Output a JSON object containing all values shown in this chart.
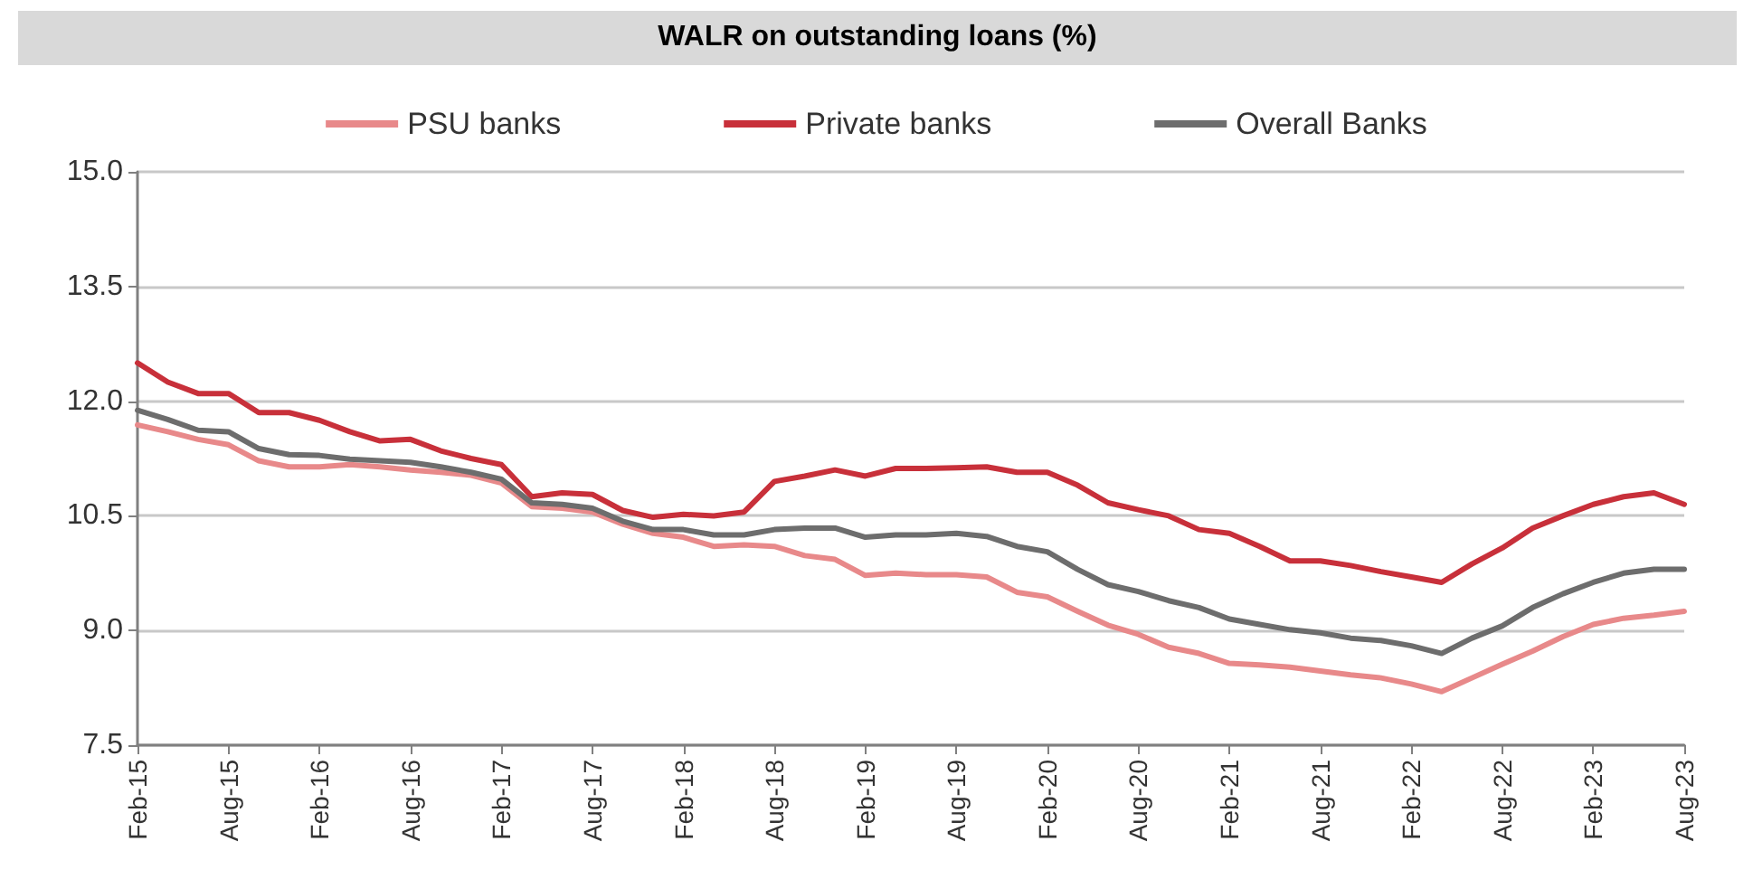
{
  "chart_data": {
    "type": "line",
    "title": "WALR on outstanding loans (%)",
    "categories": [
      "Feb-15",
      null,
      null,
      "Aug-15",
      null,
      null,
      "Feb-16",
      null,
      null,
      "Aug-16",
      null,
      null,
      "Feb-17",
      null,
      null,
      "Aug-17",
      null,
      null,
      "Feb-18",
      null,
      null,
      "Aug-18",
      null,
      null,
      "Feb-19",
      null,
      null,
      "Aug-19",
      null,
      null,
      "Feb-20",
      null,
      null,
      "Aug-20",
      null,
      null,
      "Feb-21",
      null,
      null,
      "Aug-21",
      null,
      null,
      "Feb-22",
      null,
      null,
      "Aug-22",
      null,
      null,
      "Feb-23",
      null,
      null,
      "Aug-23"
    ],
    "series": [
      {
        "name": "PSU banks",
        "color": "#e8898a",
        "values": [
          11.69,
          11.6,
          11.5,
          11.43,
          11.22,
          11.14,
          11.14,
          11.17,
          11.14,
          11.1,
          11.07,
          11.03,
          10.93,
          10.62,
          10.6,
          10.55,
          10.39,
          10.27,
          10.22,
          10.1,
          10.12,
          10.1,
          9.98,
          9.93,
          9.72,
          9.75,
          9.73,
          9.73,
          9.7,
          9.5,
          9.44,
          9.25,
          9.07,
          8.95,
          8.78,
          8.7,
          8.57,
          8.55,
          8.52,
          8.47,
          8.42,
          8.38,
          8.3,
          8.2,
          8.38,
          8.56,
          8.73,
          8.92,
          9.08,
          9.16,
          9.2,
          9.25
        ]
      },
      {
        "name": "Private banks",
        "color": "#c8303a",
        "values": [
          12.5,
          12.25,
          12.1,
          12.1,
          11.85,
          11.85,
          11.75,
          11.6,
          11.48,
          11.5,
          11.35,
          11.25,
          11.17,
          10.75,
          10.8,
          10.78,
          10.57,
          10.48,
          10.52,
          10.5,
          10.55,
          10.95,
          11.02,
          11.1,
          11.02,
          11.12,
          11.12,
          11.13,
          11.14,
          11.07,
          11.07,
          10.9,
          10.67,
          10.58,
          10.5,
          10.32,
          10.27,
          10.1,
          9.91,
          9.91,
          9.85,
          9.77,
          9.7,
          9.63,
          9.87,
          10.08,
          10.34,
          10.5,
          10.65,
          10.75,
          10.8,
          10.65
        ]
      },
      {
        "name": "Overall Banks",
        "color": "#6d6d6d",
        "values": [
          11.88,
          11.76,
          11.62,
          11.6,
          11.38,
          11.3,
          11.29,
          11.24,
          11.22,
          11.2,
          11.14,
          11.07,
          10.98,
          10.67,
          10.65,
          10.6,
          10.43,
          10.32,
          10.32,
          10.25,
          10.25,
          10.32,
          10.34,
          10.34,
          10.22,
          10.25,
          10.25,
          10.27,
          10.23,
          10.1,
          10.03,
          9.8,
          9.6,
          9.51,
          9.39,
          9.3,
          9.15,
          9.08,
          9.01,
          8.97,
          8.9,
          8.87,
          8.8,
          8.7,
          8.9,
          9.06,
          9.3,
          9.48,
          9.63,
          9.75,
          9.8,
          9.8
        ]
      }
    ],
    "ylim": [
      7.5,
      15
    ],
    "yticks": [
      {
        "value": 7.5,
        "label": "7.5"
      },
      {
        "value": 9,
        "label": "9.0"
      },
      {
        "value": 10.5,
        "label": "10.5"
      },
      {
        "value": 12,
        "label": "12.0"
      },
      {
        "value": 13.5,
        "label": "13.5"
      },
      {
        "value": 15,
        "label": "15.0"
      }
    ],
    "grid": "y",
    "legend": "top",
    "marker": "none",
    "line_style": "solid"
  }
}
